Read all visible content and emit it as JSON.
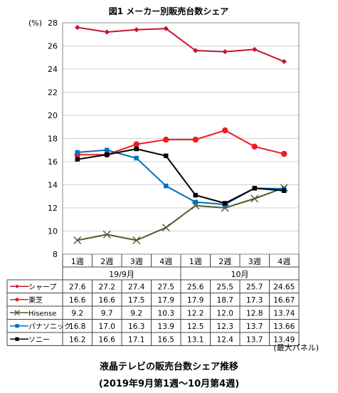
{
  "chart_data": {
    "type": "line",
    "title": "図1 メーカー別販売台数シェア",
    "ylabel": "(%)",
    "ylim": [
      8,
      28
    ],
    "y_ticks": [
      8,
      10,
      12,
      14,
      16,
      18,
      20,
      22,
      24,
      26,
      28
    ],
    "categories": [
      "1週",
      "2週",
      "3週",
      "4週",
      "1週",
      "2週",
      "3週",
      "4週"
    ],
    "month_groups": [
      {
        "label": "19/9月",
        "count": 4
      },
      {
        "label": "10月",
        "count": 4
      }
    ],
    "grid": true,
    "legend": "table-below",
    "series": [
      {
        "name": "シャープ",
        "color": "#c8102e",
        "marker": "diamond",
        "values": [
          27.6,
          27.2,
          27.4,
          27.5,
          25.6,
          25.5,
          25.7,
          24.65
        ],
        "labels": [
          "27.6",
          "27.2",
          "27.4",
          "27.5",
          "25.6",
          "25.5",
          "25.7",
          "24.65"
        ]
      },
      {
        "name": "東芝",
        "color": "#ee1c25",
        "marker": "circle",
        "values": [
          16.6,
          16.6,
          17.5,
          17.9,
          17.9,
          18.7,
          17.3,
          16.67
        ],
        "labels": [
          "16.6",
          "16.6",
          "17.5",
          "17.9",
          "17.9",
          "18.7",
          "17.3",
          "16.67"
        ]
      },
      {
        "name": "Hisense",
        "color": "#4d5a2a",
        "marker": "x",
        "values": [
          9.2,
          9.7,
          9.2,
          10.3,
          12.2,
          12.0,
          12.8,
          13.74
        ],
        "labels": [
          "9.2",
          "9.7",
          "9.2",
          "10.3",
          "12.2",
          "12.0",
          "12.8",
          "13.74"
        ]
      },
      {
        "name": "パナソニック",
        "color": "#0070c0",
        "marker": "square",
        "values": [
          16.8,
          17.0,
          16.3,
          13.9,
          12.5,
          12.3,
          13.7,
          13.66
        ],
        "labels": [
          "16.8",
          "17.0",
          "16.3",
          "13.9",
          "12.5",
          "12.3",
          "13.7",
          "13.66"
        ]
      },
      {
        "name": "ソニー",
        "color": "#000000",
        "marker": "square",
        "values": [
          16.2,
          16.6,
          17.1,
          16.5,
          13.1,
          12.4,
          13.7,
          13.49
        ],
        "labels": [
          "16.2",
          "16.6",
          "17.1",
          "16.5",
          "13.1",
          "12.4",
          "13.7",
          "13.49"
        ]
      }
    ],
    "annotation": "(最大パネル)"
  },
  "caption": {
    "line1": "液晶テレビの販売台数シェア推移",
    "line2": "(2019年9月第1週〜10月第4週)"
  }
}
